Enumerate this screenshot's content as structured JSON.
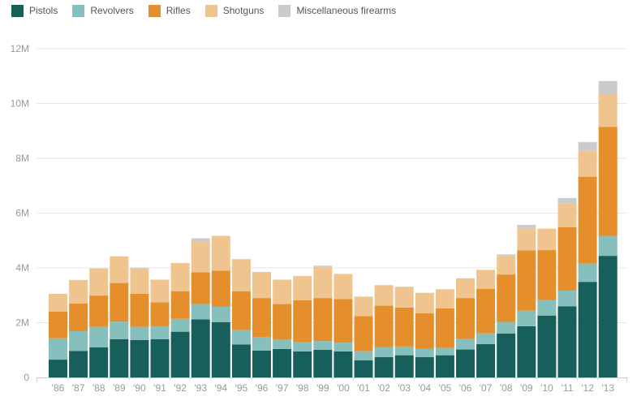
{
  "chart_data": {
    "type": "bar",
    "stacked": true,
    "title": "",
    "xlabel": "",
    "ylabel": "",
    "ylim": [
      0,
      12000000
    ],
    "grid": true,
    "legend_position": "top-left",
    "yticks": [
      0,
      2000000,
      4000000,
      6000000,
      8000000,
      10000000,
      12000000
    ],
    "ytick_labels": [
      "0",
      "2M",
      "4M",
      "6M",
      "8M",
      "10M",
      "12M"
    ],
    "categories": [
      "'86",
      "'87",
      "'88",
      "'89",
      "'90",
      "'91",
      "'92",
      "'93",
      "'94",
      "'95",
      "'96",
      "'97",
      "'98",
      "'99",
      "'00",
      "'01",
      "'02",
      "'03",
      "'04",
      "'05",
      "'06",
      "'07",
      "'08",
      "'09",
      "'10",
      "'11",
      "'12",
      "'13"
    ],
    "series": [
      {
        "name": "Pistols",
        "color": "#175f5a",
        "values": [
          650000,
          970000,
          1100000,
          1400000,
          1370000,
          1400000,
          1670000,
          2120000,
          2020000,
          1200000,
          980000,
          1040000,
          950000,
          1010000,
          950000,
          630000,
          740000,
          810000,
          740000,
          810000,
          1020000,
          1220000,
          1600000,
          1870000,
          2260000,
          2600000,
          3490000,
          4440000
        ]
      },
      {
        "name": "Revolvers",
        "color": "#87bfbc",
        "values": [
          780000,
          720000,
          750000,
          640000,
          480000,
          460000,
          470000,
          560000,
          560000,
          530000,
          500000,
          340000,
          330000,
          320000,
          320000,
          330000,
          360000,
          320000,
          300000,
          270000,
          380000,
          390000,
          430000,
          570000,
          560000,
          570000,
          670000,
          730000
        ]
      },
      {
        "name": "Rifles",
        "color": "#e58f2c",
        "values": [
          970000,
          1010000,
          1140000,
          1410000,
          1210000,
          880000,
          1010000,
          1160000,
          1320000,
          1410000,
          1420000,
          1300000,
          1540000,
          1570000,
          1590000,
          1280000,
          1520000,
          1420000,
          1300000,
          1440000,
          1500000,
          1630000,
          1730000,
          2200000,
          1830000,
          2320000,
          3170000,
          3980000
        ]
      },
      {
        "name": "Shotguns",
        "color": "#f0c48f",
        "values": [
          650000,
          860000,
          990000,
          970000,
          920000,
          830000,
          1030000,
          1140000,
          1270000,
          1180000,
          950000,
          890000,
          880000,
          1140000,
          920000,
          710000,
          750000,
          760000,
          750000,
          700000,
          720000,
          690000,
          660000,
          800000,
          780000,
          860000,
          960000,
          1190000
        ]
      },
      {
        "name": "Miscellaneous firearms",
        "color": "#cbcbcb",
        "values": [
          0,
          0,
          0,
          0,
          30000,
          0,
          0,
          100000,
          0,
          0,
          0,
          0,
          0,
          40000,
          0,
          0,
          0,
          0,
          0,
          0,
          0,
          0,
          70000,
          130000,
          0,
          200000,
          300000,
          480000
        ]
      }
    ]
  },
  "legend": {
    "items": [
      {
        "label": "Pistols",
        "color": "#175f5a"
      },
      {
        "label": "Revolvers",
        "color": "#87bfbc"
      },
      {
        "label": "Rifles",
        "color": "#e58f2c"
      },
      {
        "label": "Shotguns",
        "color": "#f0c48f"
      },
      {
        "label": "Miscellaneous firearms",
        "color": "#cbcbcb"
      }
    ]
  }
}
